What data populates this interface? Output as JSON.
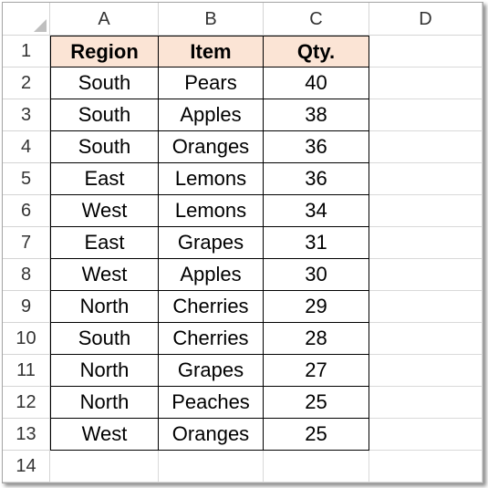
{
  "sheet": {
    "columns": [
      "A",
      "B",
      "C",
      "D"
    ],
    "rows": [
      "1",
      "2",
      "3",
      "4",
      "5",
      "6",
      "7",
      "8",
      "9",
      "10",
      "11",
      "12",
      "13",
      "14"
    ],
    "headers": [
      "Region",
      "Item",
      "Qty."
    ],
    "data": [
      [
        "South",
        "Pears",
        "40"
      ],
      [
        "South",
        "Apples",
        "38"
      ],
      [
        "South",
        "Oranges",
        "36"
      ],
      [
        "East",
        "Lemons",
        "36"
      ],
      [
        "West",
        "Lemons",
        "34"
      ],
      [
        "East",
        "Grapes",
        "31"
      ],
      [
        "West",
        "Apples",
        "30"
      ],
      [
        "North",
        "Cherries",
        "29"
      ],
      [
        "South",
        "Cherries",
        "28"
      ],
      [
        "North",
        "Grapes",
        "27"
      ],
      [
        "North",
        "Peaches",
        "25"
      ],
      [
        "West",
        "Oranges",
        "25"
      ]
    ],
    "header_fill": "#fbe4d5"
  }
}
